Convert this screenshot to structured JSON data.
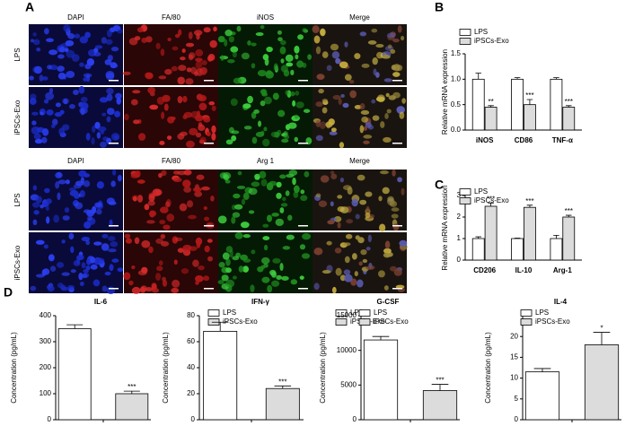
{
  "panel_labels": [
    "A",
    "B",
    "C",
    "D"
  ],
  "image_panel": {
    "blocks": [
      {
        "columns": [
          "DAPI",
          "FA/80",
          "iNOS",
          "Merge"
        ],
        "rows": [
          "LPS",
          "iPSCs-Exo"
        ]
      },
      {
        "columns": [
          "DAPI",
          "FA/80",
          "Arg 1",
          "Merge"
        ],
        "rows": [
          "LPS",
          "iPSCs-Exo"
        ]
      }
    ]
  },
  "chart_data": [
    {
      "type": "bar",
      "ylabel": "Relative mRNA expression",
      "categories": [
        "iNOS",
        "CD86",
        "TNF-α"
      ],
      "ylim": [
        0,
        1.5
      ],
      "yticks": [
        {
          "value": 0,
          "label": "0.0"
        },
        0.5,
        {
          "value": 1,
          "label": "1.0"
        },
        1.5
      ],
      "legend": "top-left",
      "series": [
        {
          "name": "LPS",
          "color": "#ffffff",
          "values": [
            1.0,
            1.0,
            1.0
          ],
          "errors": [
            0.12,
            0.03,
            0.03
          ]
        },
        {
          "name": "iPSCs-Exo",
          "color": "#dcdcdc",
          "values": [
            0.45,
            0.5,
            0.45
          ],
          "errors": [
            0.03,
            0.1,
            0.03
          ],
          "annotations": [
            "**",
            "***",
            "***"
          ]
        }
      ]
    },
    {
      "type": "bar",
      "ylabel": "Relative mRNA expression",
      "categories": [
        "CD206",
        "IL-10",
        "Arg-1"
      ],
      "ylim": [
        0,
        3
      ],
      "yticks": [
        0,
        1,
        2,
        3
      ],
      "legend": "top-left",
      "series": [
        {
          "name": "LPS",
          "color": "#ffffff",
          "values": [
            1.0,
            1.0,
            1.0
          ],
          "errors": [
            0.08,
            0.02,
            0.15
          ]
        },
        {
          "name": "iPSCs-Exo",
          "color": "#dcdcdc",
          "values": [
            2.5,
            2.45,
            2.0
          ],
          "errors": [
            0.15,
            0.1,
            0.08
          ],
          "annotations": [
            "***",
            "***",
            "***"
          ]
        }
      ]
    },
    {
      "type": "bar",
      "title": "IL-6",
      "ylabel": "Concentration (pg/mL)",
      "categories": [
        null
      ],
      "ylim": [
        0,
        400
      ],
      "yticks": [
        0,
        100,
        200,
        300,
        400
      ],
      "legend": "top-right",
      "series": [
        {
          "name": "LPS",
          "color": "#ffffff",
          "values": [
            350
          ],
          "errors": [
            15
          ]
        },
        {
          "name": "iPSCs-Exo",
          "color": "#dcdcdc",
          "values": [
            100
          ],
          "errors": [
            10
          ],
          "annotations": [
            "***"
          ]
        }
      ]
    },
    {
      "type": "bar",
      "title": "IFN-γ",
      "ylabel": "Concentration (pg/mL)",
      "categories": [
        null
      ],
      "ylim": [
        0,
        80
      ],
      "yticks": [
        0,
        20,
        40,
        60,
        80
      ],
      "legend": "top-right",
      "series": [
        {
          "name": "LPS",
          "color": "#ffffff",
          "values": [
            68
          ],
          "errors": [
            7
          ]
        },
        {
          "name": "iPSCs-Exo",
          "color": "#dcdcdc",
          "values": [
            24
          ],
          "errors": [
            2
          ],
          "annotations": [
            "***"
          ]
        }
      ]
    },
    {
      "type": "bar",
      "title": "G-CSF",
      "ylabel": "Concentration (pg/mL)",
      "categories": [
        null
      ],
      "ylim": [
        0,
        15000
      ],
      "yticks": [
        0,
        5000,
        10000,
        15000
      ],
      "legend": "top-right",
      "series": [
        {
          "name": "LPS",
          "color": "#ffffff",
          "values": [
            11500
          ],
          "errors": [
            500
          ]
        },
        {
          "name": "iPSCs-Exo",
          "color": "#dcdcdc",
          "values": [
            4200
          ],
          "errors": [
            900
          ],
          "annotations": [
            "***"
          ]
        }
      ]
    },
    {
      "type": "bar",
      "title": "IL-4",
      "ylabel": "Concentration (pg/mL)",
      "categories": [
        null
      ],
      "ylim": [
        0,
        25
      ],
      "yticks": [
        0,
        5,
        10,
        15,
        20
      ],
      "legend": "top-right",
      "series": [
        {
          "name": "LPS",
          "color": "#ffffff",
          "values": [
            11.5
          ],
          "errors": [
            0.8
          ]
        },
        {
          "name": "iPSCs-Exo",
          "color": "#dcdcdc",
          "values": [
            18
          ],
          "errors": [
            3
          ],
          "annotations": [
            "*"
          ]
        }
      ]
    }
  ]
}
